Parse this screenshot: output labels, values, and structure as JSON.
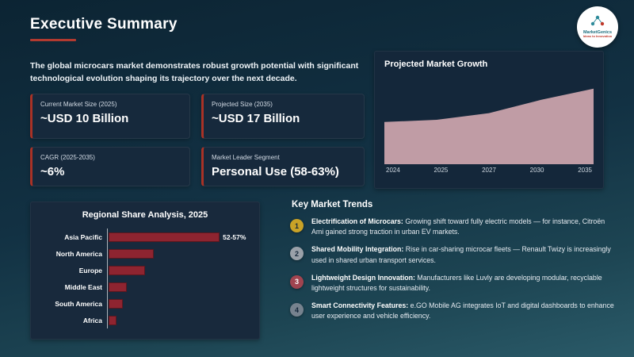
{
  "header": {
    "title": "Executive Summary",
    "intro": "The global microcars market demonstrates robust growth potential with significant technological evolution shaping its trajectory over the next decade.",
    "logo": {
      "brand": "MarketGenics",
      "tagline": "Ideas to Innovation"
    }
  },
  "stat_cards": [
    {
      "label": "Current Market Size (2025)",
      "value": "~USD 10 Billion"
    },
    {
      "label": "Projected Size (2035)",
      "value": "~USD 17 Billion"
    },
    {
      "label": "CAGR (2025-2035)",
      "value": "~6%"
    },
    {
      "label": "Market Leader Segment",
      "value": "Personal Use (58-63%)"
    }
  ],
  "growth_panel": {
    "title": "Projected Market Growth"
  },
  "regional_panel": {
    "title": "Regional Share Analysis, 2025"
  },
  "trends": {
    "title": "Key Market Trends",
    "items": [
      {
        "num": "1",
        "color": "#c9a227",
        "text_color": "#14273a",
        "lead": "Electrification of Microcars:",
        "text": "Growing shift toward fully electric models — for instance, Citroën Ami gained strong traction in urban EV markets."
      },
      {
        "num": "2",
        "color": "#9aa1a9",
        "text_color": "#14273a",
        "lead": "Shared Mobility Integration:",
        "text": "Rise in car-sharing microcar fleets — Renault Twizy is increasingly used in shared urban transport services."
      },
      {
        "num": "3",
        "color": "#a04450",
        "text_color": "#ffffff",
        "lead": "Lightweight Design Innovation:",
        "text": "Manufacturers like Luvly are developing modular, recyclable lightweight structures for sustainability."
      },
      {
        "num": "4",
        "color": "#76828e",
        "text_color": "#14273a",
        "lead": "Smart Connectivity Features:",
        "text": "e.GO Mobile AG integrates IoT and digital dashboards to enhance user experience and vehicle efficiency."
      }
    ]
  },
  "chart_data": [
    {
      "type": "area",
      "title": "Projected Market Growth",
      "x": [
        "2024",
        "2025",
        "2027",
        "2030",
        "2035"
      ],
      "values": [
        9.5,
        10,
        11.5,
        14.5,
        17
      ],
      "ylim": [
        0,
        20
      ],
      "fill_color": "#c9a2ab",
      "grid": false,
      "legend": "none"
    },
    {
      "type": "bar",
      "orientation": "horizontal",
      "title": "Regional Share Analysis, 2025",
      "categories": [
        "Asia Pacific",
        "North America",
        "Europe",
        "Middle East",
        "South America",
        "Africa"
      ],
      "values": [
        54.5,
        22,
        18,
        9,
        7,
        4
      ],
      "annotations": [
        {
          "category": "Asia Pacific",
          "label": "52-57%"
        }
      ],
      "bar_color": "#8e2430",
      "xlim": [
        0,
        70
      ],
      "grid": false
    }
  ],
  "colors": {
    "accent_red": "#b23a30",
    "card_bg": "#16293c",
    "panel_bg": "#14273a",
    "area_fill": "#c9a2ab",
    "bar_fill": "#8e2430"
  }
}
